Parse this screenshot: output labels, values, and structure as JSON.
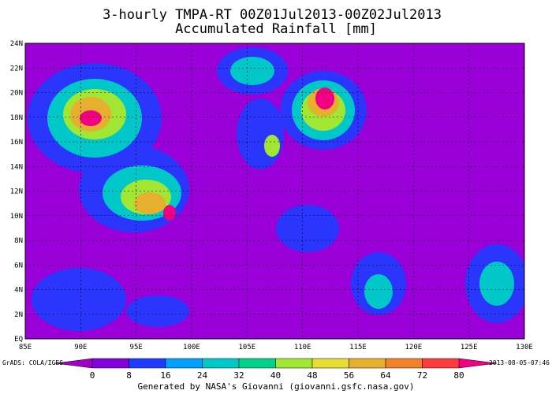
{
  "title": "3-hourly TMPA-RT 00Z01Jul2013-00Z02Jul2013",
  "subtitle": "Accumulated Rainfall [mm]",
  "map": {
    "lat_labels": [
      "EQ",
      "2N",
      "4N",
      "6N",
      "8N",
      "10N",
      "12N",
      "14N",
      "16N",
      "18N",
      "20N",
      "22N",
      "24N"
    ],
    "lon_labels": [
      "85E",
      "90E",
      "95E",
      "100E",
      "105E",
      "110E",
      "115E",
      "120E",
      "125E",
      "130E"
    ]
  },
  "colorbar": {
    "ticks": [
      0,
      8,
      16,
      24,
      32,
      40,
      48,
      56,
      64,
      72,
      80
    ],
    "colors": [
      "#a000c8",
      "#8200dc",
      "#1e3cff",
      "#00a0ff",
      "#00c8c8",
      "#00d28c",
      "#a0e632",
      "#e6dc32",
      "#e6af2d",
      "#f08228",
      "#fa3c3c",
      "#f00082"
    ]
  },
  "footer": {
    "left": "GrADS: COLA/IGES",
    "right": "2013-08-05-07:46",
    "credit": "Generated by NASA's Giovanni (giovanni.gsfc.nasa.gov)"
  }
}
